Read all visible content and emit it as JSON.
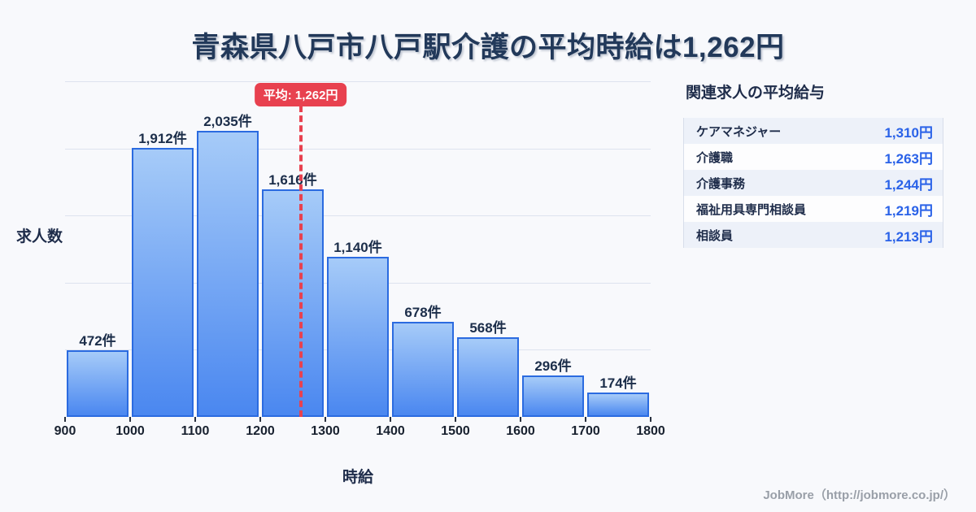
{
  "title": "青森県八戸市八戸駅介護の平均時給は1,262円",
  "chart_data": {
    "type": "bar",
    "title": "青森県八戸市八戸駅介護の平均時給は1,262円",
    "xlabel": "時給",
    "ylabel": "求人数",
    "x_range": [
      900,
      1800
    ],
    "bucket_size": 100,
    "x_tick_labels": [
      "900",
      "1000",
      "1100",
      "1200",
      "1300",
      "1400",
      "1500",
      "1600",
      "1700",
      "1800"
    ],
    "categories": [
      "900-1000",
      "1000-1100",
      "1100-1200",
      "1200-1300",
      "1300-1400",
      "1400-1500",
      "1500-1600",
      "1600-1700",
      "1700-1800"
    ],
    "values": [
      472,
      1912,
      2035,
      1616,
      1140,
      678,
      568,
      296,
      174
    ],
    "bar_labels": [
      "472件",
      "1,912件",
      "2,035件",
      "1,616件",
      "1,140件",
      "678件",
      "568件",
      "296件",
      "174件"
    ],
    "average": {
      "value": 1262,
      "label": "平均: 1,262円"
    },
    "grid": true,
    "gridline_count": 5,
    "legend": "none"
  },
  "sidebar": {
    "title": "関連求人の平均給与",
    "rows": [
      {
        "label": "ケアマネジャー",
        "value": "1,310円"
      },
      {
        "label": "介護職",
        "value": "1,263円"
      },
      {
        "label": "介護事務",
        "value": "1,244円"
      },
      {
        "label": "福祉用具専門相談員",
        "value": "1,219円"
      },
      {
        "label": "相談員",
        "value": "1,213円"
      }
    ]
  },
  "footer": {
    "credit": "JobMore（http://jobmore.co.jp/）"
  },
  "colors": {
    "background": "#f8f9fc",
    "title_text": "#22395a",
    "bar_gradient_top": "#a6cbf8",
    "bar_gradient_bottom": "#4a87f0",
    "bar_border": "#2b6be0",
    "average_line": "#e8414f",
    "gridline": "#dde3ef",
    "sidebar_value": "#2a62e8",
    "sidebar_row_alt": "#edf1f9",
    "credit_text": "#999fa8"
  }
}
